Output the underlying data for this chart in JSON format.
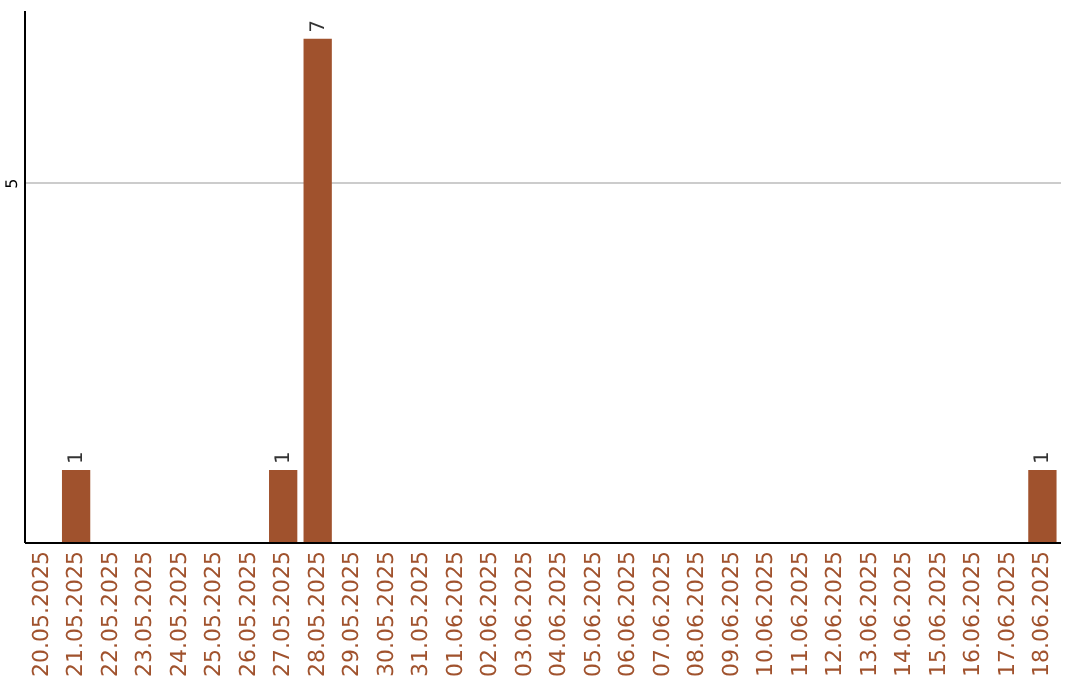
{
  "chart_data": {
    "type": "bar",
    "categories": [
      "20.05.2025",
      "21.05.2025",
      "22.05.2025",
      "23.05.2025",
      "24.05.2025",
      "25.05.2025",
      "26.05.2025",
      "27.05.2025",
      "28.05.2025",
      "29.05.2025",
      "30.05.2025",
      "31.05.2025",
      "01.06.2025",
      "02.06.2025",
      "03.06.2025",
      "04.06.2025",
      "05.06.2025",
      "06.06.2025",
      "07.06.2025",
      "08.06.2025",
      "09.06.2025",
      "10.06.2025",
      "11.06.2025",
      "12.06.2025",
      "13.06.2025",
      "14.06.2025",
      "15.06.2025",
      "16.06.2025",
      "17.06.2025",
      "18.06.2025"
    ],
    "values": [
      0,
      1,
      0,
      0,
      0,
      0,
      0,
      1,
      7,
      0,
      0,
      0,
      0,
      0,
      0,
      0,
      0,
      0,
      0,
      0,
      0,
      0,
      0,
      0,
      0,
      0,
      0,
      0,
      0,
      1
    ],
    "value_labels": [
      null,
      "1",
      null,
      null,
      null,
      null,
      null,
      "1",
      "7",
      null,
      null,
      null,
      null,
      null,
      null,
      null,
      null,
      null,
      null,
      null,
      null,
      null,
      null,
      null,
      null,
      null,
      null,
      null,
      null,
      "1"
    ],
    "color": "#a0522d",
    "ylim": [
      0,
      7.4
    ],
    "yticks": [
      5
    ],
    "grid": "y"
  }
}
